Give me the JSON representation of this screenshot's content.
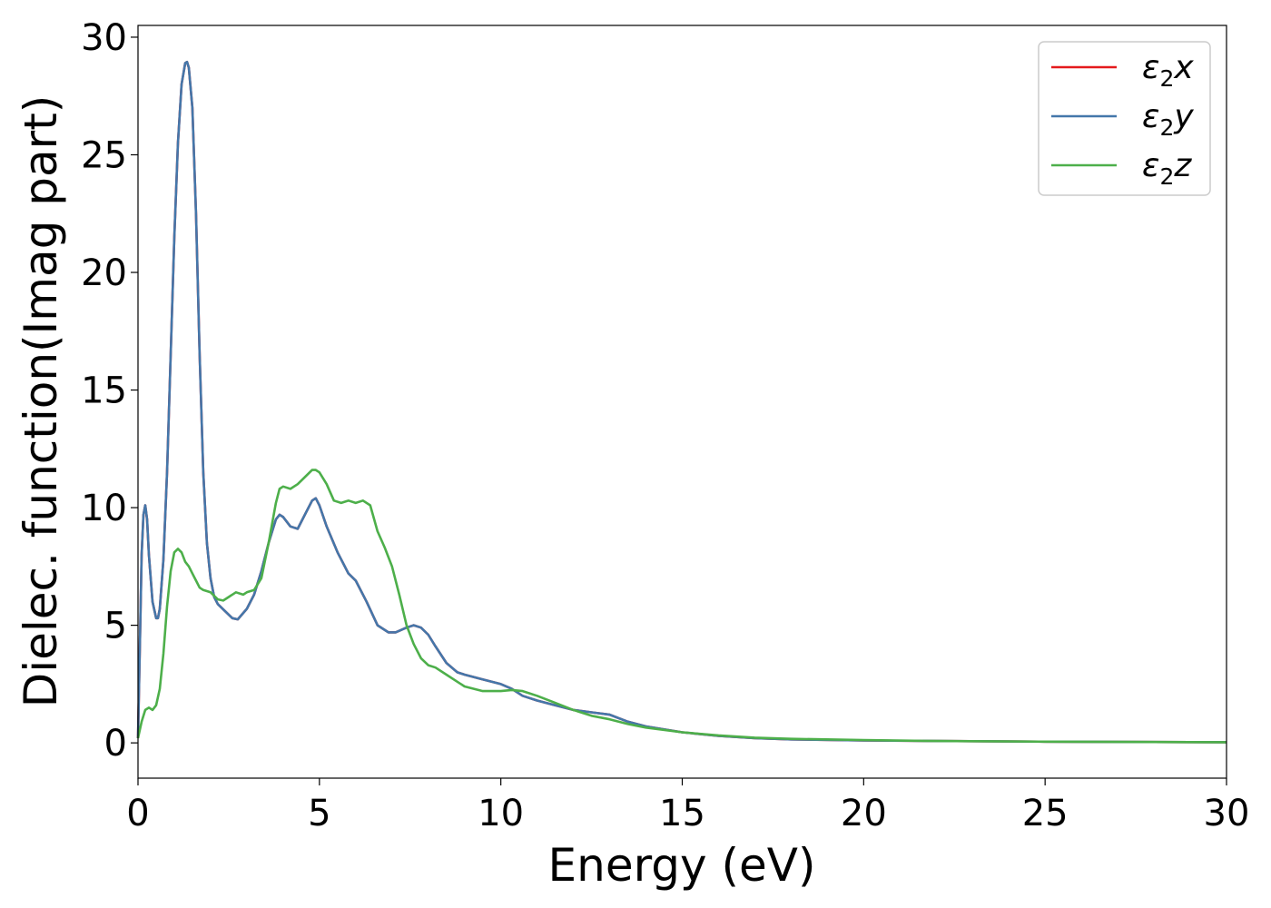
{
  "chart_data": {
    "type": "line",
    "xlabel": "Energy (eV)",
    "ylabel": "Dielec. function(Imag part)",
    "xlim": [
      0,
      30
    ],
    "ylim": [
      -1.5,
      30.5
    ],
    "xticks": [
      0,
      5,
      10,
      15,
      20,
      25,
      30
    ],
    "yticks": [
      0,
      5,
      10,
      15,
      20,
      25,
      30
    ],
    "legend_position": "top-right",
    "series": [
      {
        "name": "x",
        "color": "#e41a1c",
        "x": [
          0,
          0.05,
          0.1,
          0.15,
          0.2,
          0.25,
          0.3,
          0.4,
          0.5,
          0.55,
          0.6,
          0.7,
          0.8,
          0.9,
          1.0,
          1.1,
          1.2,
          1.3,
          1.35,
          1.4,
          1.5,
          1.6,
          1.7,
          1.8,
          1.9,
          2.0,
          2.1,
          2.2,
          2.4,
          2.6,
          2.75,
          3.0,
          3.2,
          3.4,
          3.6,
          3.8,
          3.9,
          4.0,
          4.2,
          4.4,
          4.6,
          4.8,
          4.9,
          5.0,
          5.2,
          5.5,
          5.8,
          6.0,
          6.3,
          6.6,
          6.9,
          7.1,
          7.4,
          7.6,
          7.8,
          8.0,
          8.2,
          8.5,
          8.8,
          9.0,
          9.5,
          10.0,
          10.3,
          10.6,
          11.0,
          11.5,
          12.0,
          12.5,
          13.0,
          13.5,
          14.0,
          15.0,
          16.0,
          17.0,
          18.0,
          20.0,
          22.0,
          25.0,
          27.0,
          30.0
        ],
        "y": [
          0.2,
          4.0,
          8.0,
          9.7,
          10.1,
          9.5,
          8.0,
          6.0,
          5.3,
          5.3,
          5.7,
          7.8,
          11.5,
          16.5,
          21.5,
          25.5,
          28.0,
          28.9,
          28.95,
          28.7,
          27.0,
          22.5,
          16.5,
          11.5,
          8.5,
          7.0,
          6.2,
          5.9,
          5.6,
          5.3,
          5.25,
          5.7,
          6.3,
          7.3,
          8.5,
          9.5,
          9.7,
          9.6,
          9.2,
          9.1,
          9.7,
          10.3,
          10.4,
          10.1,
          9.2,
          8.1,
          7.2,
          6.9,
          6.0,
          5.0,
          4.7,
          4.7,
          4.9,
          5.0,
          4.9,
          4.6,
          4.1,
          3.4,
          3.0,
          2.9,
          2.7,
          2.5,
          2.3,
          2.0,
          1.8,
          1.6,
          1.4,
          1.3,
          1.2,
          0.9,
          0.7,
          0.45,
          0.3,
          0.2,
          0.15,
          0.1,
          0.08,
          0.05,
          0.04,
          0.03
        ]
      },
      {
        "name": "y",
        "color": "#4477aa",
        "x": [
          0,
          0.05,
          0.1,
          0.15,
          0.2,
          0.25,
          0.3,
          0.4,
          0.5,
          0.55,
          0.6,
          0.7,
          0.8,
          0.9,
          1.0,
          1.1,
          1.2,
          1.3,
          1.35,
          1.4,
          1.5,
          1.6,
          1.7,
          1.8,
          1.9,
          2.0,
          2.1,
          2.2,
          2.4,
          2.6,
          2.75,
          3.0,
          3.2,
          3.4,
          3.6,
          3.8,
          3.9,
          4.0,
          4.2,
          4.4,
          4.6,
          4.8,
          4.9,
          5.0,
          5.2,
          5.5,
          5.8,
          6.0,
          6.3,
          6.6,
          6.9,
          7.1,
          7.4,
          7.6,
          7.8,
          8.0,
          8.2,
          8.5,
          8.8,
          9.0,
          9.5,
          10.0,
          10.3,
          10.6,
          11.0,
          11.5,
          12.0,
          12.5,
          13.0,
          13.5,
          14.0,
          15.0,
          16.0,
          17.0,
          18.0,
          20.0,
          22.0,
          25.0,
          27.0,
          30.0
        ],
        "y": [
          0.2,
          4.0,
          8.0,
          9.7,
          10.1,
          9.5,
          8.0,
          6.0,
          5.3,
          5.3,
          5.7,
          7.8,
          11.5,
          16.5,
          21.5,
          25.5,
          28.0,
          28.9,
          28.95,
          28.7,
          27.0,
          22.5,
          16.5,
          11.5,
          8.5,
          7.0,
          6.2,
          5.9,
          5.6,
          5.3,
          5.25,
          5.7,
          6.3,
          7.3,
          8.5,
          9.5,
          9.7,
          9.6,
          9.2,
          9.1,
          9.7,
          10.3,
          10.4,
          10.1,
          9.2,
          8.1,
          7.2,
          6.9,
          6.0,
          5.0,
          4.7,
          4.7,
          4.9,
          5.0,
          4.9,
          4.6,
          4.1,
          3.4,
          3.0,
          2.9,
          2.7,
          2.5,
          2.3,
          2.0,
          1.8,
          1.6,
          1.4,
          1.3,
          1.2,
          0.9,
          0.7,
          0.45,
          0.3,
          0.2,
          0.15,
          0.1,
          0.08,
          0.05,
          0.04,
          0.03
        ]
      },
      {
        "name": "z",
        "color": "#4daf4a",
        "x": [
          0,
          0.1,
          0.2,
          0.3,
          0.4,
          0.5,
          0.6,
          0.7,
          0.8,
          0.9,
          1.0,
          1.1,
          1.2,
          1.3,
          1.4,
          1.5,
          1.6,
          1.7,
          1.8,
          2.0,
          2.2,
          2.35,
          2.5,
          2.7,
          2.9,
          3.0,
          3.2,
          3.4,
          3.6,
          3.8,
          3.9,
          4.0,
          4.2,
          4.4,
          4.6,
          4.8,
          4.9,
          5.0,
          5.2,
          5.4,
          5.6,
          5.8,
          6.0,
          6.2,
          6.4,
          6.6,
          6.8,
          7.0,
          7.2,
          7.4,
          7.6,
          7.8,
          8.0,
          8.2,
          8.5,
          8.8,
          9.0,
          9.5,
          10.0,
          10.3,
          10.6,
          11.0,
          11.5,
          12.0,
          12.5,
          13.0,
          13.5,
          14.0,
          15.0,
          16.0,
          17.0,
          18.0,
          20.0,
          22.0,
          25.0,
          27.0,
          30.0
        ],
        "y": [
          0.2,
          0.9,
          1.4,
          1.5,
          1.4,
          1.6,
          2.3,
          3.8,
          5.8,
          7.3,
          8.1,
          8.25,
          8.1,
          7.7,
          7.5,
          7.2,
          6.9,
          6.6,
          6.5,
          6.4,
          6.1,
          6.05,
          6.2,
          6.4,
          6.3,
          6.4,
          6.5,
          7.0,
          8.5,
          10.2,
          10.8,
          10.9,
          10.8,
          11.0,
          11.3,
          11.6,
          11.6,
          11.5,
          11.0,
          10.3,
          10.2,
          10.3,
          10.2,
          10.3,
          10.1,
          9.0,
          8.3,
          7.5,
          6.3,
          5.0,
          4.2,
          3.6,
          3.3,
          3.2,
          2.9,
          2.6,
          2.4,
          2.2,
          2.2,
          2.25,
          2.2,
          2.0,
          1.7,
          1.4,
          1.15,
          1.0,
          0.8,
          0.65,
          0.45,
          0.32,
          0.22,
          0.17,
          0.12,
          0.08,
          0.05,
          0.04,
          0.03
        ]
      }
    ]
  }
}
